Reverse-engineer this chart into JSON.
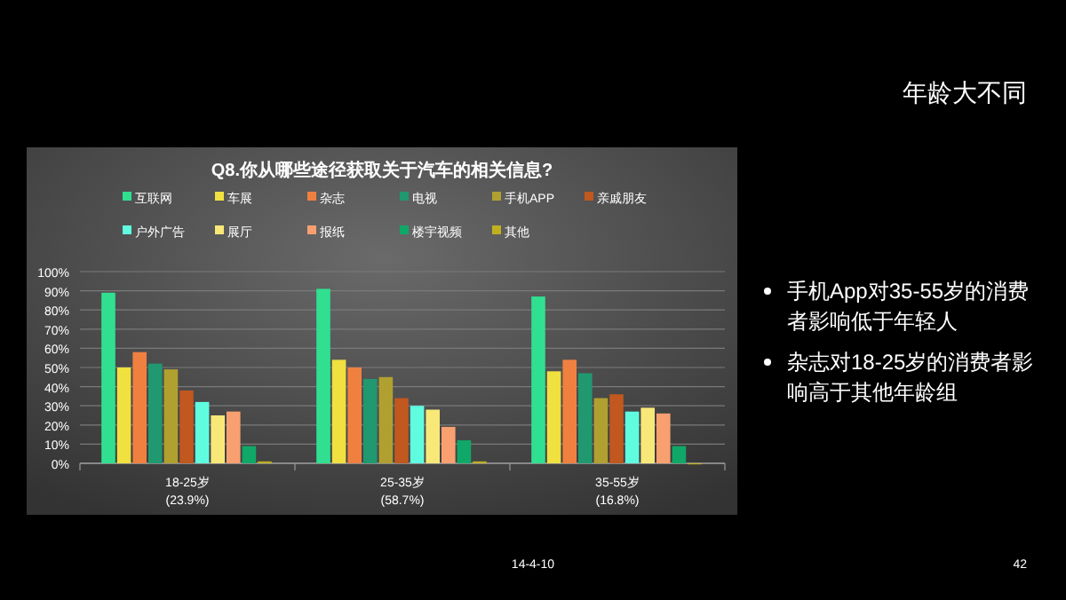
{
  "chart_data": {
    "type": "bar",
    "title": "Q8.你从哪些途径获取关于汽车的相关信息?",
    "categories": [
      "18-25岁\n(23.9%)",
      "25-35岁\n(58.7%)",
      "35-55岁\n(16.8%)"
    ],
    "series": [
      {
        "name": "互联网",
        "color": "#30e090",
        "values": [
          89,
          91,
          87
        ]
      },
      {
        "name": "车展",
        "color": "#f0e040",
        "values": [
          50,
          54,
          48
        ]
      },
      {
        "name": "杂志",
        "color": "#f08040",
        "values": [
          58,
          50,
          54
        ]
      },
      {
        "name": "电视",
        "color": "#209870",
        "values": [
          52,
          44,
          47
        ]
      },
      {
        "name": "手机APP",
        "color": "#b0a030",
        "values": [
          49,
          45,
          34
        ]
      },
      {
        "name": "亲戚朋友",
        "color": "#c05820",
        "values": [
          38,
          34,
          36
        ]
      },
      {
        "name": "户外广告",
        "color": "#60fce0",
        "values": [
          32,
          30,
          27
        ]
      },
      {
        "name": "展厅",
        "color": "#f8e878",
        "values": [
          25,
          28,
          29
        ]
      },
      {
        "name": "报纸",
        "color": "#f8a070",
        "values": [
          27,
          19,
          26
        ]
      },
      {
        "name": "楼宇视频",
        "color": "#10a868",
        "values": [
          9,
          12,
          9
        ]
      },
      {
        "name": "其他",
        "color": "#c0b020",
        "values": [
          1,
          1,
          0
        ]
      }
    ],
    "ylim": [
      0,
      100
    ],
    "yticks": [
      {
        "value": 0,
        "label": "0%"
      },
      {
        "value": 10,
        "label": "10%"
      },
      {
        "value": 20,
        "label": "20%"
      },
      {
        "value": 30,
        "label": "30%"
      },
      {
        "value": 40,
        "label": "40%"
      },
      {
        "value": 50,
        "label": "50%"
      },
      {
        "value": 60,
        "label": "60%"
      },
      {
        "value": 70,
        "label": "70%"
      },
      {
        "value": 80,
        "label": "80%"
      },
      {
        "value": 90,
        "label": "90%"
      },
      {
        "value": 100,
        "label": "100%"
      }
    ],
    "grid": "y",
    "legend": "top",
    "annotations": [
      "年龄大不同",
      "手机App对35-55岁的消费者影响低于年轻人",
      "杂志对18-25岁的消费者影响高于其他年龄组",
      "14-4-10",
      "42"
    ]
  }
}
